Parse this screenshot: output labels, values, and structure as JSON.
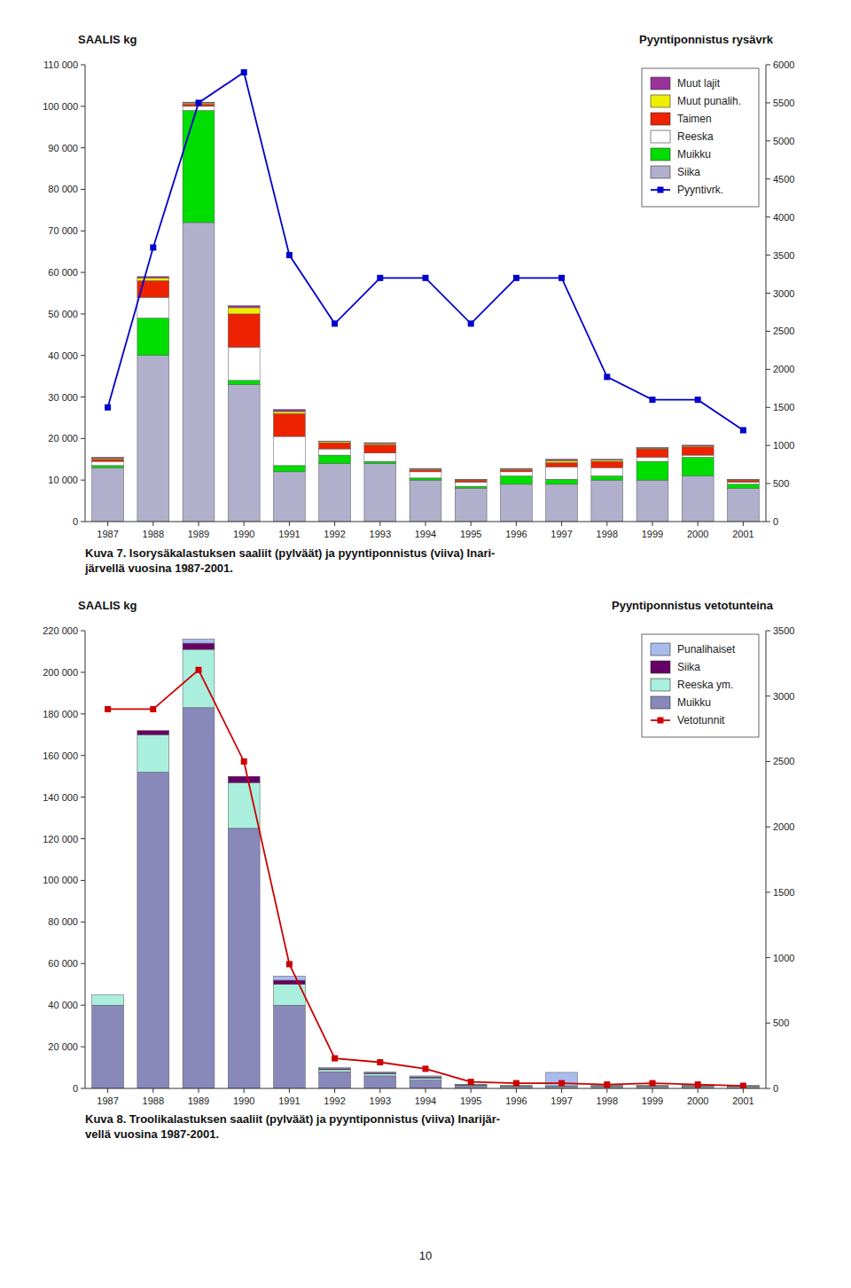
{
  "chart_data": [
    {
      "type": "bar",
      "stacked": true,
      "ylabel": "SAALIS kg",
      "y2label": "Pyyntiponnistus rysävrk",
      "caption": "Kuva 7. Isorysäkalastuksen saaliit (pylväät) ja pyyntiponnistus (viiva) Inari-\njärvellä vuosina 1987-2001.",
      "categories": [
        "1987",
        "1988",
        "1989",
        "1990",
        "1991",
        "1992",
        "1993",
        "1994",
        "1995",
        "1996",
        "1997",
        "1998",
        "1999",
        "2000",
        "2001"
      ],
      "series": [
        {
          "name": "Siika",
          "color": "#b0b0cc",
          "values": [
            13000,
            40000,
            72000,
            33000,
            12000,
            14000,
            14000,
            10000,
            8000,
            9000,
            9000,
            10000,
            10000,
            11000,
            8000
          ]
        },
        {
          "name": "Muikku",
          "color": "#00dd00",
          "values": [
            500,
            9000,
            27000,
            1000,
            1500,
            2000,
            500,
            500,
            500,
            2000,
            1200,
            1000,
            4500,
            4500,
            1000
          ]
        },
        {
          "name": "Reeska",
          "color": "#ffffff",
          "values": [
            1000,
            5000,
            1000,
            8000,
            7000,
            1500,
            2000,
            1500,
            1000,
            1000,
            3000,
            2000,
            1000,
            500,
            500
          ]
        },
        {
          "name": "Taimen",
          "color": "#ee2200",
          "values": [
            500,
            4000,
            500,
            8000,
            5500,
            1500,
            2000,
            500,
            500,
            500,
            1000,
            1500,
            2000,
            2000,
            500
          ]
        },
        {
          "name": "Muut punalih.",
          "color": "#eeee00",
          "values": [
            300,
            700,
            300,
            1500,
            500,
            300,
            300,
            200,
            100,
            200,
            500,
            300,
            200,
            200,
            100
          ]
        },
        {
          "name": "Muut lajit",
          "color": "#993399",
          "values": [
            200,
            300,
            200,
            500,
            500,
            100,
            200,
            100,
            100,
            100,
            300,
            200,
            100,
            200,
            100
          ]
        },
        {
          "name": "Pyyntivrk.",
          "type": "line",
          "axis": "y2",
          "color": "#0000cc",
          "marker": "square",
          "values": [
            1500,
            3600,
            5500,
            5900,
            3500,
            2600,
            3200,
            3200,
            2600,
            3200,
            3200,
            1900,
            1600,
            1600,
            1200
          ]
        }
      ],
      "ylim": [
        0,
        110000
      ],
      "yticks": [
        0,
        {
          "value": 10000,
          "label": "10 000"
        },
        {
          "value": 20000,
          "label": "20 000"
        },
        {
          "value": 30000,
          "label": "30 000"
        },
        {
          "value": 40000,
          "label": "40 000"
        },
        {
          "value": 50000,
          "label": "50 000"
        },
        {
          "value": 60000,
          "label": "60 000"
        },
        {
          "value": 70000,
          "label": "70 000"
        },
        {
          "value": 80000,
          "label": "80 000"
        },
        {
          "value": 90000,
          "label": "90 000"
        },
        {
          "value": 100000,
          "label": "100 000"
        },
        {
          "value": 110000,
          "label": "110 000"
        }
      ],
      "y2lim": [
        0,
        6000
      ],
      "y2ticks": [
        0,
        500,
        1000,
        1500,
        2000,
        2500,
        3000,
        3500,
        4000,
        4500,
        5000,
        5500,
        6000
      ],
      "grid": false,
      "legend": "upper right"
    },
    {
      "type": "bar",
      "stacked": true,
      "ylabel": "SAALIS kg",
      "y2label": "Pyyntiponnistus vetotunteina",
      "caption": "Kuva 8. Troolikalastuksen saaliit (pylväät) ja pyyntiponnistus (viiva) Inarijär-\nvellä vuosina 1987-2001.",
      "categories": [
        "1987",
        "1988",
        "1989",
        "1990",
        "1991",
        "1992",
        "1993",
        "1994",
        "1995",
        "1996",
        "1997",
        "1998",
        "1999",
        "2000",
        "2001"
      ],
      "series": [
        {
          "name": "Muikku",
          "color": "#8888bb",
          "values": [
            40000,
            152000,
            183000,
            125000,
            40000,
            8000,
            6000,
            4000,
            1000,
            500,
            500,
            500,
            500,
            500,
            500
          ]
        },
        {
          "name": "Reeska ym.",
          "color": "#aaeedd",
          "values": [
            5000,
            18000,
            28000,
            22000,
            10000,
            1000,
            1000,
            1000,
            500,
            500,
            500,
            500,
            500,
            500,
            500
          ]
        },
        {
          "name": "Siika",
          "color": "#660066",
          "values": [
            0,
            2000,
            3000,
            3000,
            2000,
            500,
            500,
            500,
            200,
            200,
            200,
            200,
            200,
            200,
            200
          ]
        },
        {
          "name": "Punalihaiset",
          "color": "#aabbee",
          "values": [
            0,
            0,
            2000,
            0,
            2000,
            500,
            500,
            500,
            200,
            200,
            6500,
            200,
            200,
            200,
            200
          ]
        },
        {
          "name": "Vetotunnit",
          "type": "line",
          "axis": "y2",
          "color": "#cc0000",
          "marker": "square",
          "values": [
            2900,
            2900,
            3200,
            2500,
            950,
            230,
            200,
            150,
            50,
            40,
            40,
            30,
            40,
            30,
            20
          ]
        }
      ],
      "ylim": [
        0,
        220000
      ],
      "yticks": [
        0,
        {
          "value": 20000,
          "label": "20 000"
        },
        {
          "value": 40000,
          "label": "40 000"
        },
        {
          "value": 60000,
          "label": "60 000"
        },
        {
          "value": 80000,
          "label": "80 000"
        },
        {
          "value": 100000,
          "label": "100 000"
        },
        {
          "value": 120000,
          "label": "120 000"
        },
        {
          "value": 140000,
          "label": "140 000"
        },
        {
          "value": 160000,
          "label": "160 000"
        },
        {
          "value": 180000,
          "label": "180 000"
        },
        {
          "value": 200000,
          "label": "200 000"
        },
        {
          "value": 220000,
          "label": "220 000"
        }
      ],
      "y2lim": [
        0,
        3500
      ],
      "y2ticks": [
        0,
        500,
        1000,
        1500,
        2000,
        2500,
        3000,
        3500
      ],
      "grid": false,
      "legend": "upper right"
    }
  ],
  "page_number": "10"
}
